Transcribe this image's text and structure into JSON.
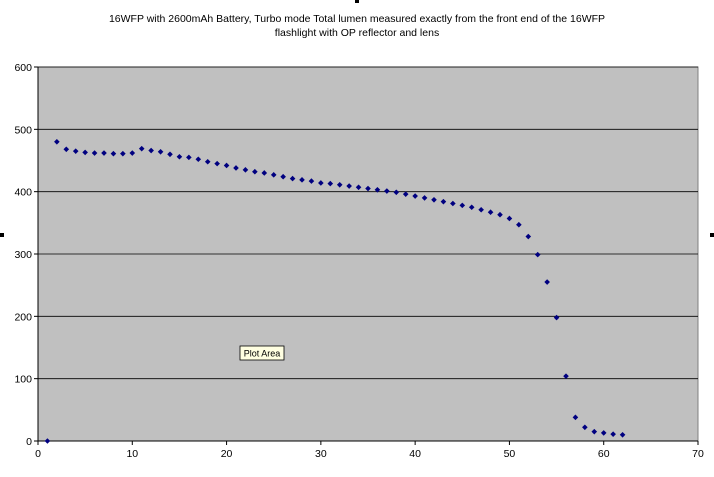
{
  "chart_data": {
    "type": "scatter",
    "title_lines": [
      "16WFP with 2600mAh Battery, Turbo mode Total lumen measured exactly from the front end of the 16WFP",
      "flashlight with OP reflector and lens"
    ],
    "xlabel": "",
    "ylabel": "",
    "xlim": [
      0,
      70
    ],
    "ylim": [
      0,
      600
    ],
    "x_ticks": [
      0,
      10,
      20,
      30,
      40,
      50,
      60,
      70
    ],
    "y_ticks": [
      0,
      100,
      200,
      300,
      400,
      500,
      600
    ],
    "grid": "horizontal",
    "legend": "none",
    "tooltip": "Plot Area",
    "colors": {
      "plot_background": "#c0c0c0",
      "marker": "#000080",
      "gridline": "#000000",
      "tooltip_background": "#ffffe1"
    },
    "series": [
      {
        "x": [
          1,
          2,
          3,
          4,
          5,
          6,
          7,
          8,
          9,
          10,
          11,
          12,
          13,
          14,
          15,
          16,
          17,
          18,
          19,
          20,
          21,
          22,
          23,
          24,
          25,
          26,
          27,
          28,
          29,
          30,
          31,
          32,
          33,
          34,
          35,
          36,
          37,
          38,
          39,
          40,
          41,
          42,
          43,
          44,
          45,
          46,
          47,
          48,
          49,
          50,
          51,
          52,
          53,
          54,
          55,
          56,
          57,
          58,
          59,
          60,
          61,
          62
        ],
        "y": [
          0,
          480,
          468,
          465,
          463,
          462,
          462,
          461,
          461,
          462,
          469,
          466,
          464,
          460,
          456,
          455,
          452,
          448,
          445,
          442,
          438,
          435,
          432,
          430,
          427,
          424,
          421,
          419,
          417,
          414,
          413,
          411,
          409,
          407,
          405,
          403,
          401,
          399,
          396,
          393,
          390,
          387,
          384,
          381,
          378,
          375,
          371,
          367,
          363,
          357,
          347,
          328,
          299,
          255,
          198,
          104,
          38,
          22,
          15,
          13,
          11,
          10
        ]
      }
    ]
  }
}
